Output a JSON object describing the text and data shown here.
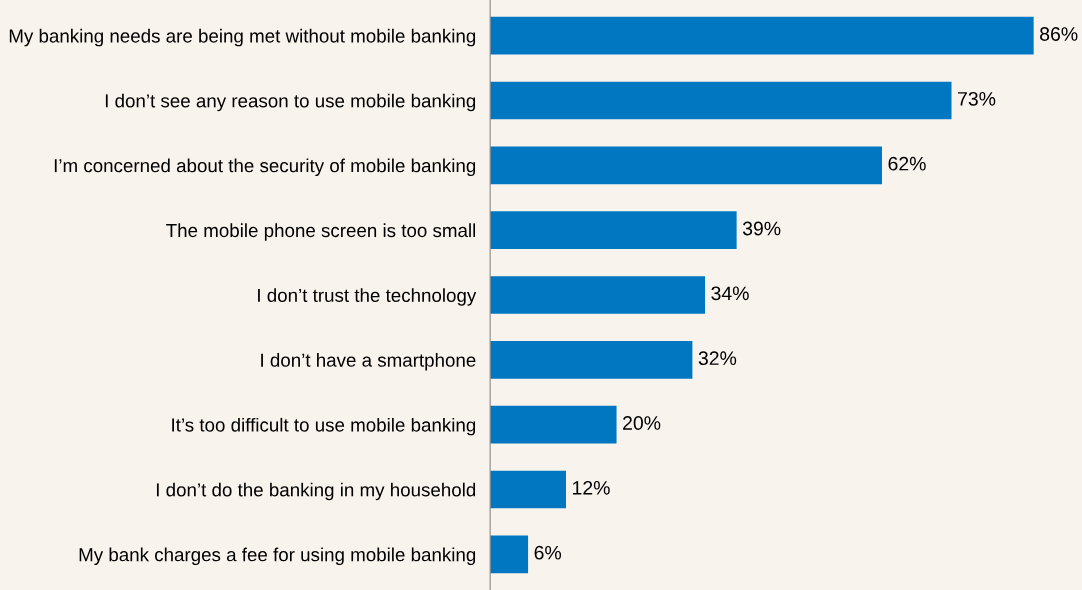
{
  "chart_data": {
    "type": "bar",
    "orientation": "horizontal",
    "categories": [
      "My banking needs are being met without mobile banking",
      "I don’t see any reason to use mobile banking",
      "I’m concerned about the security of mobile banking",
      "The mobile phone screen is too small",
      "I don’t trust the technology",
      "I don’t have a smartphone",
      "It’s too difficult to use mobile banking",
      "I don’t do the banking in my household",
      "My bank charges a fee for using mobile banking"
    ],
    "values": [
      86,
      73,
      62,
      39,
      34,
      32,
      20,
      12,
      6
    ],
    "value_labels": [
      "86%",
      "73%",
      "62%",
      "39%",
      "34%",
      "32%",
      "20%",
      "12%",
      "6%"
    ],
    "color": "#0077c0",
    "grid": false,
    "legend": false
  }
}
